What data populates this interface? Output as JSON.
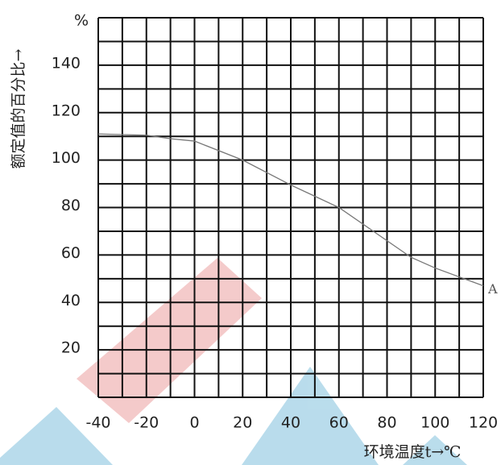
{
  "chart_data": {
    "type": "line",
    "y_unit": "%",
    "y_label": "额定值的百分比→",
    "x_label": "环境温度t→℃",
    "x": [
      -40,
      -20,
      -10,
      0,
      20,
      40,
      60,
      90,
      100,
      120
    ],
    "series": [
      {
        "name": "A",
        "color": "#777777",
        "values": [
          111,
          110.5,
          109,
          108,
          100,
          89.5,
          80,
          59,
          54.5,
          47
        ]
      }
    ],
    "xlim": [
      -40,
      120
    ],
    "xticks": [
      -40,
      -20,
      0,
      20,
      40,
      60,
      80,
      100,
      120
    ],
    "ylim": [
      0,
      160
    ],
    "yticks": [
      20,
      40,
      60,
      80,
      100,
      120,
      140
    ],
    "grid": true
  }
}
